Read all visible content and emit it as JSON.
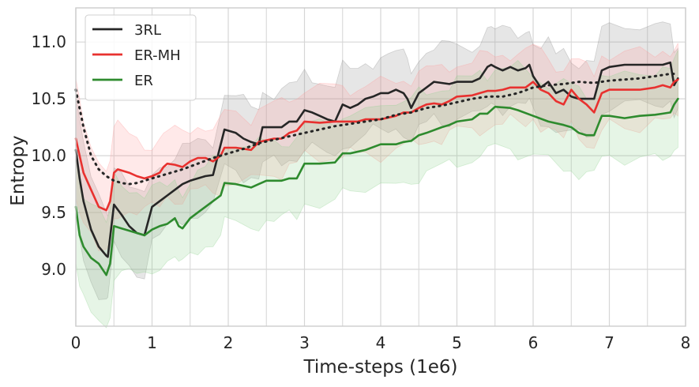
{
  "chart_data": {
    "type": "line",
    "title": "",
    "xlabel": "Time-steps (1e6)",
    "ylabel": "Entropy",
    "xlim": [
      0,
      8
    ],
    "ylim": [
      8.5,
      11.3
    ],
    "grid": true,
    "legend_position": "top-left",
    "x_ticks": [
      0,
      1,
      2,
      3,
      4,
      5,
      6,
      7,
      8
    ],
    "x_tick_labels": [
      "0",
      "1",
      "2",
      "3",
      "4",
      "5",
      "6",
      "7",
      "8"
    ],
    "y_ticks": [
      9.0,
      9.5,
      10.0,
      10.5,
      11.0
    ],
    "y_tick_labels": [
      "9.0",
      "9.5",
      "10.0",
      "10.5",
      "11.0"
    ],
    "series": [
      {
        "name": "3RL",
        "color": "#262626",
        "band_color": "#8c8c8c",
        "points": [
          [
            0.0,
            10.05
          ],
          [
            0.05,
            9.8
          ],
          [
            0.1,
            9.6
          ],
          [
            0.2,
            9.35
          ],
          [
            0.3,
            9.2
          ],
          [
            0.4,
            9.12
          ],
          [
            0.42,
            9.11
          ],
          [
            0.5,
            9.57
          ],
          [
            0.6,
            9.48
          ],
          [
            0.7,
            9.38
          ],
          [
            0.8,
            9.32
          ],
          [
            0.9,
            9.3
          ],
          [
            1.0,
            9.55
          ],
          [
            1.1,
            9.6
          ],
          [
            1.2,
            9.65
          ],
          [
            1.3,
            9.7
          ],
          [
            1.4,
            9.75
          ],
          [
            1.5,
            9.78
          ],
          [
            1.6,
            9.8
          ],
          [
            1.7,
            9.82
          ],
          [
            1.8,
            9.83
          ],
          [
            1.95,
            10.23
          ],
          [
            2.1,
            10.2
          ],
          [
            2.2,
            10.15
          ],
          [
            2.3,
            10.12
          ],
          [
            2.4,
            10.1
          ],
          [
            2.45,
            10.25
          ],
          [
            2.6,
            10.25
          ],
          [
            2.7,
            10.25
          ],
          [
            2.8,
            10.3
          ],
          [
            2.9,
            10.3
          ],
          [
            3.0,
            10.4
          ],
          [
            3.1,
            10.38
          ],
          [
            3.2,
            10.35
          ],
          [
            3.3,
            10.32
          ],
          [
            3.4,
            10.3
          ],
          [
            3.5,
            10.45
          ],
          [
            3.6,
            10.42
          ],
          [
            3.7,
            10.45
          ],
          [
            3.8,
            10.5
          ],
          [
            3.9,
            10.52
          ],
          [
            4.0,
            10.55
          ],
          [
            4.1,
            10.55
          ],
          [
            4.2,
            10.58
          ],
          [
            4.3,
            10.55
          ],
          [
            4.35,
            10.5
          ],
          [
            4.4,
            10.42
          ],
          [
            4.5,
            10.55
          ],
          [
            4.6,
            10.6
          ],
          [
            4.7,
            10.65
          ],
          [
            4.8,
            10.64
          ],
          [
            4.9,
            10.63
          ],
          [
            5.0,
            10.65
          ],
          [
            5.2,
            10.65
          ],
          [
            5.3,
            10.68
          ],
          [
            5.4,
            10.78
          ],
          [
            5.45,
            10.8
          ],
          [
            5.5,
            10.78
          ],
          [
            5.6,
            10.75
          ],
          [
            5.7,
            10.78
          ],
          [
            5.8,
            10.75
          ],
          [
            5.9,
            10.77
          ],
          [
            5.95,
            10.8
          ],
          [
            6.0,
            10.7
          ],
          [
            6.1,
            10.6
          ],
          [
            6.2,
            10.65
          ],
          [
            6.3,
            10.55
          ],
          [
            6.4,
            10.58
          ],
          [
            6.5,
            10.52
          ],
          [
            6.6,
            10.5
          ],
          [
            6.7,
            10.5
          ],
          [
            6.8,
            10.5
          ],
          [
            6.9,
            10.75
          ],
          [
            7.0,
            10.78
          ],
          [
            7.2,
            10.8
          ],
          [
            7.4,
            10.8
          ],
          [
            7.6,
            10.8
          ],
          [
            7.7,
            10.8
          ],
          [
            7.8,
            10.82
          ],
          [
            7.85,
            10.62
          ],
          [
            7.9,
            10.68
          ]
        ]
      },
      {
        "name": "ER-MH",
        "color": "#e8312f",
        "band_color": "#ff9999",
        "points": [
          [
            0.0,
            10.15
          ],
          [
            0.05,
            10.0
          ],
          [
            0.1,
            9.85
          ],
          [
            0.2,
            9.7
          ],
          [
            0.3,
            9.55
          ],
          [
            0.4,
            9.52
          ],
          [
            0.45,
            9.6
          ],
          [
            0.5,
            9.85
          ],
          [
            0.55,
            9.88
          ],
          [
            0.7,
            9.85
          ],
          [
            0.8,
            9.82
          ],
          [
            0.9,
            9.8
          ],
          [
            1.0,
            9.82
          ],
          [
            1.1,
            9.85
          ],
          [
            1.15,
            9.9
          ],
          [
            1.2,
            9.93
          ],
          [
            1.3,
            9.92
          ],
          [
            1.4,
            9.9
          ],
          [
            1.5,
            9.95
          ],
          [
            1.6,
            9.98
          ],
          [
            1.7,
            9.98
          ],
          [
            1.8,
            9.95
          ],
          [
            1.9,
            10.0
          ],
          [
            1.95,
            10.07
          ],
          [
            2.1,
            10.07
          ],
          [
            2.3,
            10.05
          ],
          [
            2.4,
            10.12
          ],
          [
            2.6,
            10.15
          ],
          [
            2.7,
            10.15
          ],
          [
            2.8,
            10.2
          ],
          [
            2.9,
            10.22
          ],
          [
            3.0,
            10.3
          ],
          [
            3.2,
            10.29
          ],
          [
            3.4,
            10.3
          ],
          [
            3.5,
            10.3
          ],
          [
            3.6,
            10.3
          ],
          [
            3.7,
            10.3
          ],
          [
            3.8,
            10.32
          ],
          [
            4.0,
            10.32
          ],
          [
            4.2,
            10.35
          ],
          [
            4.3,
            10.38
          ],
          [
            4.4,
            10.38
          ],
          [
            4.5,
            10.42
          ],
          [
            4.6,
            10.45
          ],
          [
            4.7,
            10.46
          ],
          [
            4.8,
            10.45
          ],
          [
            4.9,
            10.48
          ],
          [
            5.0,
            10.52
          ],
          [
            5.2,
            10.53
          ],
          [
            5.3,
            10.55
          ],
          [
            5.4,
            10.57
          ],
          [
            5.5,
            10.57
          ],
          [
            5.6,
            10.58
          ],
          [
            5.7,
            10.6
          ],
          [
            5.8,
            10.6
          ],
          [
            5.9,
            10.6
          ],
          [
            6.0,
            10.65
          ],
          [
            6.1,
            10.58
          ],
          [
            6.2,
            10.55
          ],
          [
            6.3,
            10.48
          ],
          [
            6.4,
            10.45
          ],
          [
            6.5,
            10.58
          ],
          [
            6.6,
            10.5
          ],
          [
            6.7,
            10.45
          ],
          [
            6.8,
            10.38
          ],
          [
            6.9,
            10.55
          ],
          [
            7.0,
            10.58
          ],
          [
            7.2,
            10.58
          ],
          [
            7.4,
            10.58
          ],
          [
            7.6,
            10.6
          ],
          [
            7.7,
            10.62
          ],
          [
            7.8,
            10.6
          ],
          [
            7.85,
            10.65
          ],
          [
            7.9,
            10.67
          ]
        ]
      },
      {
        "name": "ER",
        "color": "#2e8b2e",
        "band_color": "#8fd18f",
        "points": [
          [
            0.0,
            9.55
          ],
          [
            0.05,
            9.3
          ],
          [
            0.1,
            9.2
          ],
          [
            0.2,
            9.1
          ],
          [
            0.3,
            9.05
          ],
          [
            0.4,
            8.95
          ],
          [
            0.45,
            9.05
          ],
          [
            0.5,
            9.38
          ],
          [
            0.6,
            9.36
          ],
          [
            0.7,
            9.34
          ],
          [
            0.8,
            9.32
          ],
          [
            0.9,
            9.3
          ],
          [
            1.0,
            9.35
          ],
          [
            1.1,
            9.38
          ],
          [
            1.2,
            9.4
          ],
          [
            1.3,
            9.45
          ],
          [
            1.35,
            9.38
          ],
          [
            1.4,
            9.36
          ],
          [
            1.5,
            9.45
          ],
          [
            1.6,
            9.5
          ],
          [
            1.7,
            9.55
          ],
          [
            1.8,
            9.6
          ],
          [
            1.9,
            9.65
          ],
          [
            1.95,
            9.76
          ],
          [
            2.1,
            9.75
          ],
          [
            2.3,
            9.72
          ],
          [
            2.4,
            9.75
          ],
          [
            2.5,
            9.78
          ],
          [
            2.6,
            9.78
          ],
          [
            2.7,
            9.78
          ],
          [
            2.8,
            9.8
          ],
          [
            2.9,
            9.8
          ],
          [
            3.0,
            9.93
          ],
          [
            3.2,
            9.93
          ],
          [
            3.4,
            9.94
          ],
          [
            3.5,
            10.02
          ],
          [
            3.6,
            10.02
          ],
          [
            3.8,
            10.05
          ],
          [
            4.0,
            10.1
          ],
          [
            4.2,
            10.1
          ],
          [
            4.3,
            10.12
          ],
          [
            4.4,
            10.13
          ],
          [
            4.5,
            10.18
          ],
          [
            4.6,
            10.2
          ],
          [
            4.8,
            10.25
          ],
          [
            4.9,
            10.27
          ],
          [
            5.0,
            10.3
          ],
          [
            5.2,
            10.32
          ],
          [
            5.3,
            10.37
          ],
          [
            5.4,
            10.37
          ],
          [
            5.5,
            10.43
          ],
          [
            5.7,
            10.42
          ],
          [
            5.8,
            10.4
          ],
          [
            6.0,
            10.35
          ],
          [
            6.2,
            10.3
          ],
          [
            6.4,
            10.27
          ],
          [
            6.5,
            10.25
          ],
          [
            6.6,
            10.2
          ],
          [
            6.7,
            10.18
          ],
          [
            6.8,
            10.18
          ],
          [
            6.9,
            10.35
          ],
          [
            7.0,
            10.35
          ],
          [
            7.2,
            10.33
          ],
          [
            7.4,
            10.35
          ],
          [
            7.6,
            10.36
          ],
          [
            7.7,
            10.37
          ],
          [
            7.8,
            10.38
          ],
          [
            7.85,
            10.45
          ],
          [
            7.9,
            10.5
          ]
        ]
      },
      {
        "name": "",
        "style": "dotted",
        "color": "#262626",
        "points": [
          [
            0.0,
            10.58
          ],
          [
            0.1,
            10.25
          ],
          [
            0.2,
            10.0
          ],
          [
            0.3,
            9.88
          ],
          [
            0.4,
            9.82
          ],
          [
            0.5,
            9.78
          ],
          [
            0.6,
            9.76
          ],
          [
            0.7,
            9.75
          ],
          [
            0.8,
            9.76
          ],
          [
            0.9,
            9.78
          ],
          [
            1.0,
            9.8
          ],
          [
            1.2,
            9.84
          ],
          [
            1.4,
            9.88
          ],
          [
            1.6,
            9.93
          ],
          [
            1.8,
            9.98
          ],
          [
            2.0,
            10.02
          ],
          [
            2.2,
            10.06
          ],
          [
            2.4,
            10.11
          ],
          [
            2.6,
            10.14
          ],
          [
            2.8,
            10.17
          ],
          [
            3.0,
            10.2
          ],
          [
            3.2,
            10.23
          ],
          [
            3.4,
            10.26
          ],
          [
            3.6,
            10.28
          ],
          [
            3.8,
            10.3
          ],
          [
            4.0,
            10.32
          ],
          [
            4.2,
            10.36
          ],
          [
            4.4,
            10.38
          ],
          [
            4.6,
            10.42
          ],
          [
            4.8,
            10.44
          ],
          [
            5.0,
            10.47
          ],
          [
            5.2,
            10.5
          ],
          [
            5.4,
            10.52
          ],
          [
            5.6,
            10.52
          ],
          [
            5.8,
            10.55
          ],
          [
            6.0,
            10.6
          ],
          [
            6.2,
            10.62
          ],
          [
            6.4,
            10.63
          ],
          [
            6.6,
            10.65
          ],
          [
            6.8,
            10.64
          ],
          [
            7.0,
            10.66
          ],
          [
            7.2,
            10.67
          ],
          [
            7.4,
            10.68
          ],
          [
            7.6,
            10.7
          ],
          [
            7.8,
            10.72
          ],
          [
            7.9,
            10.72
          ]
        ]
      }
    ]
  }
}
